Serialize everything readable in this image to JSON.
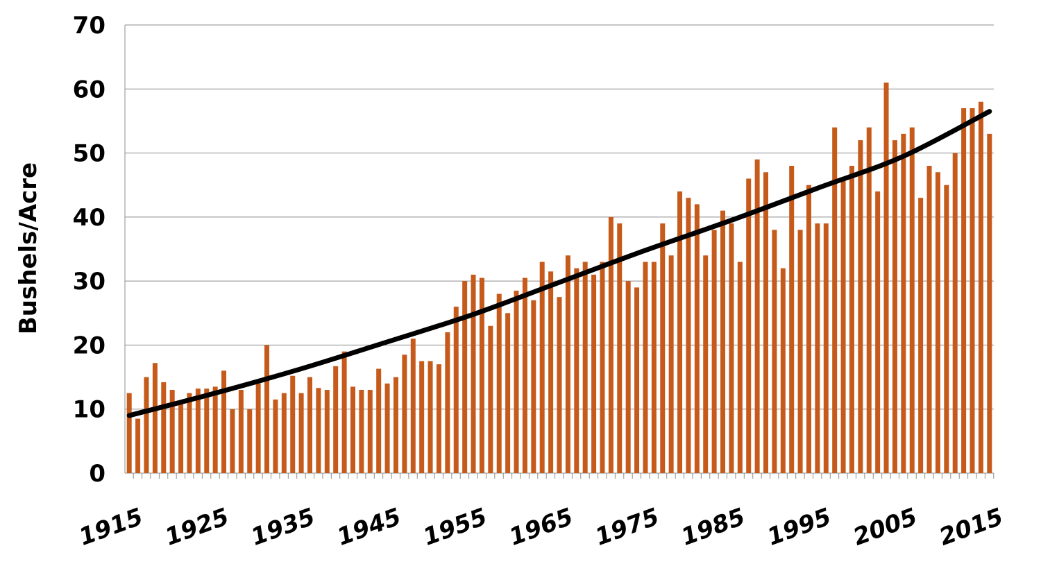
{
  "chart_data": {
    "type": "bar",
    "y_label": "Bushels/Acre",
    "color": "#c55a1b",
    "grid": true,
    "xlim": [
      1914.5,
      2015.5
    ],
    "xticks": [
      1915,
      1925,
      1935,
      1945,
      1955,
      1965,
      1975,
      1985,
      1995,
      2005,
      2015
    ],
    "ylim": [
      0,
      70
    ],
    "yticks": [
      0,
      10,
      20,
      30,
      40,
      50,
      60,
      70
    ],
    "x": [
      1915,
      1916,
      1917,
      1918,
      1919,
      1920,
      1921,
      1922,
      1923,
      1924,
      1925,
      1926,
      1927,
      1928,
      1929,
      1930,
      1931,
      1932,
      1933,
      1934,
      1935,
      1936,
      1937,
      1938,
      1939,
      1940,
      1941,
      1942,
      1943,
      1944,
      1945,
      1946,
      1947,
      1948,
      1949,
      1950,
      1951,
      1952,
      1953,
      1954,
      1955,
      1956,
      1957,
      1958,
      1959,
      1960,
      1961,
      1962,
      1963,
      1964,
      1965,
      1966,
      1967,
      1968,
      1969,
      1970,
      1971,
      1972,
      1973,
      1974,
      1975,
      1976,
      1977,
      1978,
      1979,
      1980,
      1981,
      1982,
      1983,
      1984,
      1985,
      1986,
      1987,
      1988,
      1989,
      1990,
      1991,
      1992,
      1993,
      1994,
      1995,
      1996,
      1997,
      1998,
      1999,
      2000,
      2001,
      2002,
      2003,
      2004,
      2005,
      2006,
      2007,
      2008,
      2009,
      2010,
      2011,
      2012,
      2013,
      2014,
      2015
    ],
    "values": [
      12.5,
      8.5,
      15,
      17.2,
      14.2,
      13,
      11,
      12.5,
      13.2,
      13.2,
      13.5,
      16,
      10,
      13,
      10,
      14,
      20,
      11.5,
      12.5,
      15.2,
      12.5,
      15,
      13.3,
      13,
      16.7,
      19,
      13.5,
      13,
      13,
      16.3,
      14,
      15,
      18.5,
      21,
      17.5,
      17.5,
      17,
      22,
      26,
      30,
      31,
      30.5,
      23,
      28,
      25,
      28.5,
      30.5,
      27,
      33,
      31.5,
      27.5,
      34,
      32,
      33,
      31,
      33,
      40,
      39,
      30,
      29,
      33,
      33,
      39,
      34,
      44,
      43,
      42,
      34,
      38,
      41,
      39,
      33,
      46,
      49,
      47,
      38,
      32,
      48,
      38,
      45,
      39,
      39,
      54,
      46,
      48,
      52,
      54,
      44,
      61,
      52,
      53,
      54,
      43,
      48,
      47,
      45,
      50,
      57,
      57,
      58,
      53
    ],
    "trend": {
      "color": "#000000",
      "x": [
        1915,
        1925,
        1935,
        1945,
        1955,
        1965,
        1975,
        1985,
        1995,
        2005,
        2015
      ],
      "values": [
        9,
        12.5,
        16.3,
        20.5,
        24.8,
        29.8,
        34.8,
        39.5,
        44.5,
        49.5,
        56.5
      ]
    }
  }
}
